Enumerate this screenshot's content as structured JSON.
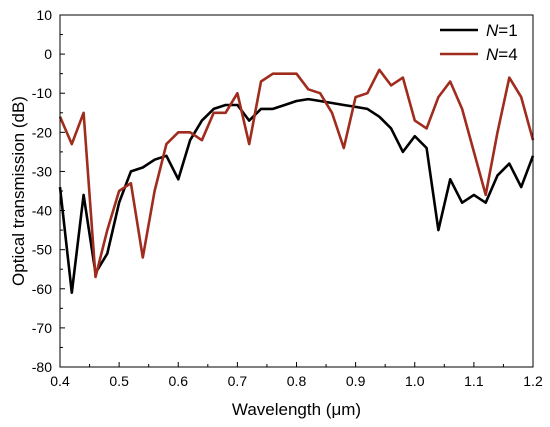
{
  "chart_data": {
    "type": "line",
    "xlabel": "Wavelength (μm)",
    "ylabel": "Optical transmission (dB)",
    "xlim": [
      0.4,
      1.2
    ],
    "ylim": [
      -80,
      10
    ],
    "xticks": [
      "0.4",
      "0.5",
      "0.6",
      "0.7",
      "0.8",
      "0.9",
      "1.0",
      "1.1",
      "1.2"
    ],
    "yticks": [
      "10",
      "0",
      "-10",
      "-20",
      "-30",
      "-40",
      "-50",
      "-60",
      "-70",
      "-80"
    ],
    "grid": false,
    "legend_position": "top-right",
    "legend": [
      {
        "prefix": "N",
        "suffix": "=1"
      },
      {
        "prefix": "N",
        "suffix": "=4"
      }
    ],
    "series": [
      {
        "name": "N=1",
        "color": "#000000",
        "x": [
          0.4,
          0.42,
          0.44,
          0.46,
          0.48,
          0.5,
          0.52,
          0.54,
          0.56,
          0.58,
          0.6,
          0.62,
          0.64,
          0.66,
          0.68,
          0.7,
          0.72,
          0.74,
          0.76,
          0.78,
          0.8,
          0.82,
          0.84,
          0.86,
          0.88,
          0.9,
          0.92,
          0.94,
          0.96,
          0.98,
          1.0,
          1.02,
          1.04,
          1.06,
          1.08,
          1.1,
          1.12,
          1.14,
          1.16,
          1.18,
          1.2
        ],
        "y": [
          -34,
          -61,
          -36,
          -56,
          -51,
          -38,
          -30,
          -29,
          -27,
          -26,
          -32,
          -22,
          -17,
          -14,
          -13,
          -13,
          -17,
          -14,
          -14,
          -13,
          -12,
          -11.5,
          -12,
          -12.5,
          -13,
          -13.5,
          -14,
          -16,
          -19,
          -25,
          -21,
          -24,
          -45,
          -32,
          -38,
          -36,
          -38,
          -31,
          -28,
          -34,
          -26
        ]
      },
      {
        "name": "N=4",
        "color": "#a02c1e",
        "x": [
          0.4,
          0.42,
          0.44,
          0.46,
          0.48,
          0.5,
          0.52,
          0.54,
          0.56,
          0.58,
          0.6,
          0.62,
          0.64,
          0.66,
          0.68,
          0.7,
          0.72,
          0.74,
          0.76,
          0.78,
          0.8,
          0.82,
          0.84,
          0.86,
          0.88,
          0.9,
          0.92,
          0.94,
          0.96,
          0.98,
          1.0,
          1.02,
          1.04,
          1.06,
          1.08,
          1.1,
          1.12,
          1.14,
          1.16,
          1.18,
          1.2
        ],
        "y": [
          -16,
          -23,
          -15,
          -57,
          -45,
          -35,
          -33,
          -52,
          -35,
          -23,
          -20,
          -20,
          -22,
          -15,
          -15,
          -10,
          -23,
          -7,
          -5,
          -5,
          -5,
          -9,
          -10,
          -15,
          -24,
          -11,
          -10,
          -4,
          -8,
          -6,
          -17,
          -19,
          -11,
          -7,
          -14,
          -25,
          -36,
          -20,
          -6,
          -11,
          -22
        ]
      }
    ]
  }
}
